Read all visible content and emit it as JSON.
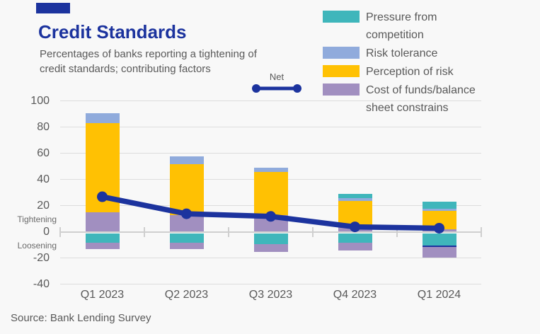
{
  "header": {
    "title": "Credit Standards",
    "subtitle_line1": "Percentages of banks  reporting a tightening of",
    "subtitle_line2": "credit standards; contributing factors"
  },
  "source": "Source: Bank Lending Survey",
  "accent_color": "#1C339E",
  "chart_data": {
    "type": "bar",
    "subtype": "stacked-bars-with-net-line",
    "title": "Credit Standards",
    "subtitle": "Percentages of banks reporting a tightening of credit standards; contributing factors",
    "categories": [
      "Q1 2023",
      "Q2 2023",
      "Q3 2023",
      "Q4 2023",
      "Q1 2024"
    ],
    "series": [
      {
        "name": "Pressure from competition",
        "color": "#3FB6BB",
        "positive": [
          0,
          0,
          0,
          3,
          5
        ],
        "negative": [
          -7,
          -7,
          -8,
          -7,
          -9
        ]
      },
      {
        "name": "Risk tolerance",
        "color": "#90ABDC",
        "positive": [
          8,
          6,
          3,
          2,
          2
        ],
        "negative": [
          0,
          0,
          0,
          0,
          0
        ]
      },
      {
        "name": "Perception of risk",
        "color": "#FFC103",
        "positive": [
          68,
          39,
          33,
          20,
          14
        ],
        "negative": [
          0,
          0,
          0,
          0,
          0
        ]
      },
      {
        "name": "Cost of funds/balance sheet constrains",
        "color": "#A18FC0",
        "positive": [
          15,
          13,
          13,
          4,
          2
        ],
        "negative": [
          -5,
          -5,
          -6,
          -6,
          -8
        ]
      }
    ],
    "divider_segment": {
      "name": "navy-divider",
      "color": "#1C339E",
      "positive": [
        0,
        0,
        0,
        0,
        0
      ],
      "negative": [
        0,
        0,
        0,
        0,
        -1.5
      ]
    },
    "net": {
      "name": "Net",
      "color": "#1C339E",
      "values": [
        27,
        14,
        12,
        4,
        3
      ]
    },
    "positive_stack_order": [
      "Cost of funds/balance sheet constrains",
      "Perception of risk",
      "Risk tolerance",
      "Pressure from competition"
    ],
    "negative_stack_order": [
      "Pressure from competition",
      "navy-divider",
      "Cost of funds/balance sheet constrains"
    ],
    "ylim": [
      -40,
      100
    ],
    "yticks": [
      100,
      80,
      60,
      40,
      20,
      0,
      -20,
      -40
    ],
    "ylabel_upper": "Tightening",
    "ylabel_lower": "Loosening",
    "grid": true,
    "legend_position": "top-right"
  }
}
